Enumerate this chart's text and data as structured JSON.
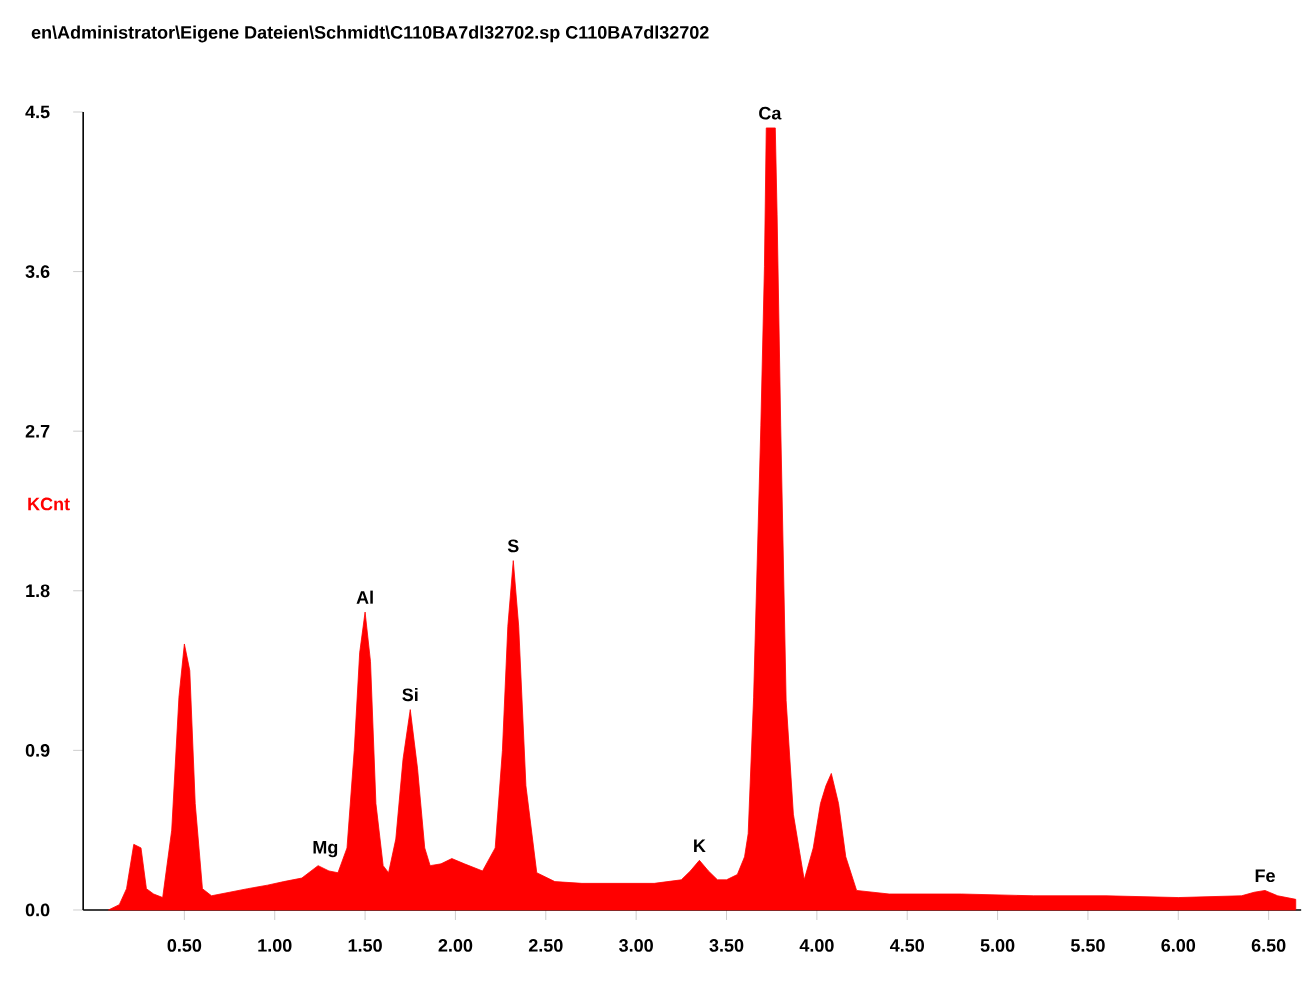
{
  "chart_data": {
    "type": "area",
    "title": "en\\Administrator\\Eigene Dateien\\Schmidt\\C110BA7dl32702.sp C110BA7dl32702",
    "ylabel": "KCnt",
    "x": [
      0.08,
      0.14,
      0.18,
      0.22,
      0.26,
      0.29,
      0.33,
      0.38,
      0.43,
      0.47,
      0.5,
      0.53,
      0.56,
      0.6,
      0.65,
      0.75,
      0.85,
      0.96,
      1.05,
      1.15,
      1.24,
      1.3,
      1.35,
      1.4,
      1.44,
      1.47,
      1.5,
      1.53,
      1.56,
      1.6,
      1.63,
      1.67,
      1.71,
      1.75,
      1.79,
      1.83,
      1.86,
      1.92,
      1.98,
      2.05,
      2.15,
      2.22,
      2.26,
      2.29,
      2.32,
      2.35,
      2.39,
      2.45,
      2.55,
      2.7,
      2.9,
      3.1,
      3.25,
      3.3,
      3.35,
      3.4,
      3.45,
      3.5,
      3.56,
      3.6,
      3.62,
      3.65,
      3.69,
      3.71,
      3.72,
      3.77,
      3.78,
      3.8,
      3.83,
      3.87,
      3.93,
      3.98,
      4.02,
      4.05,
      4.08,
      4.12,
      4.16,
      4.22,
      4.4,
      4.8,
      5.2,
      5.6,
      6.0,
      6.35,
      6.42,
      6.48,
      6.55,
      6.65
    ],
    "values": [
      0.0,
      0.03,
      0.12,
      0.37,
      0.35,
      0.12,
      0.09,
      0.07,
      0.45,
      1.2,
      1.5,
      1.35,
      0.6,
      0.12,
      0.08,
      0.1,
      0.12,
      0.14,
      0.16,
      0.18,
      0.25,
      0.22,
      0.21,
      0.35,
      0.9,
      1.45,
      1.68,
      1.4,
      0.6,
      0.25,
      0.21,
      0.4,
      0.85,
      1.13,
      0.8,
      0.35,
      0.25,
      0.26,
      0.29,
      0.26,
      0.22,
      0.35,
      0.9,
      1.6,
      1.97,
      1.6,
      0.7,
      0.21,
      0.16,
      0.15,
      0.15,
      0.15,
      0.17,
      0.22,
      0.28,
      0.22,
      0.17,
      0.17,
      0.2,
      0.3,
      0.43,
      1.2,
      2.73,
      3.63,
      4.41,
      4.41,
      3.92,
      2.73,
      1.18,
      0.54,
      0.17,
      0.35,
      0.6,
      0.7,
      0.77,
      0.6,
      0.3,
      0.11,
      0.09,
      0.09,
      0.08,
      0.08,
      0.07,
      0.08,
      0.1,
      0.11,
      0.08,
      0.06
    ],
    "color": "#ff0000",
    "xlim": [
      -0.06,
      6.68
    ],
    "ylim": [
      0,
      4.5
    ],
    "xticks": [
      {
        "value": 0.5,
        "label": "0.50"
      },
      {
        "value": 1.0,
        "label": "1.00"
      },
      {
        "value": 1.5,
        "label": "1.50"
      },
      {
        "value": 2.0,
        "label": "2.00"
      },
      {
        "value": 2.5,
        "label": "2.50"
      },
      {
        "value": 3.0,
        "label": "3.00"
      },
      {
        "value": 3.5,
        "label": "3.50"
      },
      {
        "value": 4.0,
        "label": "4.00"
      },
      {
        "value": 4.5,
        "label": "4.50"
      },
      {
        "value": 5.0,
        "label": "5.00"
      },
      {
        "value": 5.5,
        "label": "5.50"
      },
      {
        "value": 6.0,
        "label": "6.00"
      },
      {
        "value": 6.5,
        "label": "6.50"
      }
    ],
    "yticks": [
      {
        "value": 0,
        "label": "0.0"
      },
      {
        "value": 0.9,
        "label": "0.9"
      },
      {
        "value": 1.8,
        "label": "1.8"
      },
      {
        "value": 2.7,
        "label": "2.7"
      },
      {
        "value": 3.6,
        "label": "3.6"
      },
      {
        "value": 4.5,
        "label": "4.5"
      }
    ],
    "annotations": [
      {
        "text": "Mg",
        "x": 1.28,
        "y": 0.25
      },
      {
        "text": "Al",
        "x": 1.5,
        "y": 1.68
      },
      {
        "text": "Si",
        "x": 1.75,
        "y": 1.13
      },
      {
        "text": "S",
        "x": 2.32,
        "y": 1.97
      },
      {
        "text": "K",
        "x": 3.35,
        "y": 0.28
      },
      {
        "text": "Ca",
        "x": 3.74,
        "y": 4.41
      },
      {
        "text": "Fe",
        "x": 6.48,
        "y": 0.11
      }
    ]
  }
}
